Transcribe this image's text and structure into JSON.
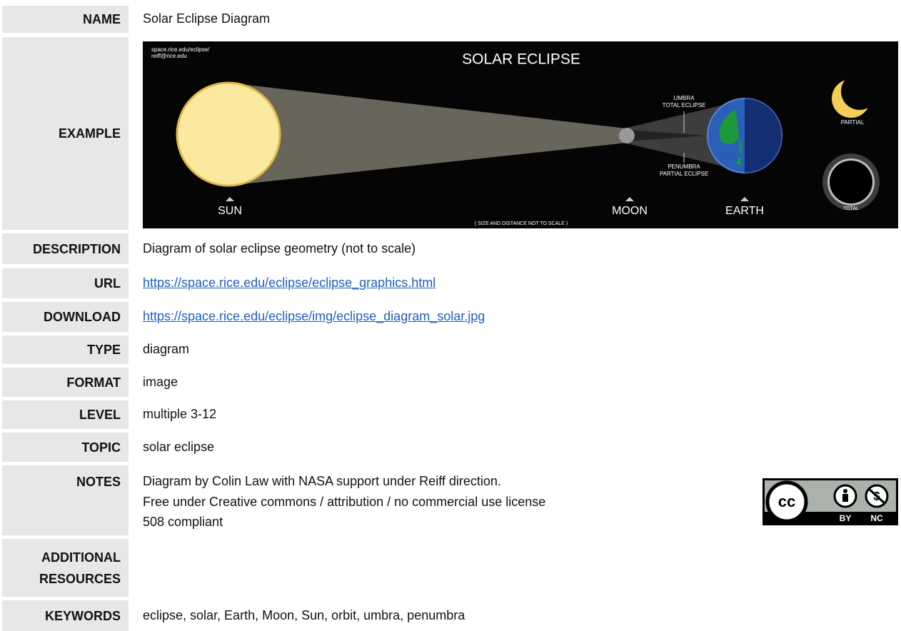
{
  "rows": [
    {
      "label": "NAME",
      "value": "Solar Eclipse Diagram"
    },
    {
      "label": "EXAMPLE"
    },
    {
      "label": "DESCRIPTION",
      "value": "Diagram of solar eclipse geometry (not to scale)"
    },
    {
      "label": "URL",
      "value": "https://space.rice.edu/eclipse/eclipse_graphics.html"
    },
    {
      "label": "DOWNLOAD",
      "value": "https://space.rice.edu/eclipse/img/eclipse_diagram_solar.jpg"
    },
    {
      "label": "TYPE",
      "value": "diagram"
    },
    {
      "label": "FORMAT",
      "value": "image"
    },
    {
      "label": "LEVEL",
      "value": "multiple 3-12"
    },
    {
      "label": "TOPIC",
      "value": "solar eclipse"
    },
    {
      "label": "NOTES",
      "lines": [
        "Diagram by Colin Law with NASA support under Reiff direction.",
        "Free under Creative commons / attribution / no commercial use license",
        "508 compliant"
      ]
    },
    {
      "label": "ADDITIONAL",
      "label2": "RESOURCES"
    },
    {
      "label": "KEYWORDS",
      "value": "eclipse, solar, Earth, Moon, Sun, orbit, umbra, penumbra"
    }
  ],
  "example_image": {
    "credit_1": "space.rice.edu/eclipse/",
    "credit_2": "reiff@rice.edu",
    "title": "SOLAR ECLIPSE",
    "umbra_1": "UMBRA",
    "umbra_2": "TOTAL ECLIPSE",
    "penumbra_1": "PENUMBRA",
    "penumbra_2": "PARTIAL ECLIPSE",
    "partial": "PARTIAL",
    "total": "TOTAL",
    "sun": "SUN",
    "moon": "MOON",
    "earth": "EARTH",
    "footnote": "( SIZE AND DISTANCE NOT TO SCALE )"
  },
  "license_badge": {
    "cc": "cc",
    "by": "BY",
    "nc": "NC"
  }
}
